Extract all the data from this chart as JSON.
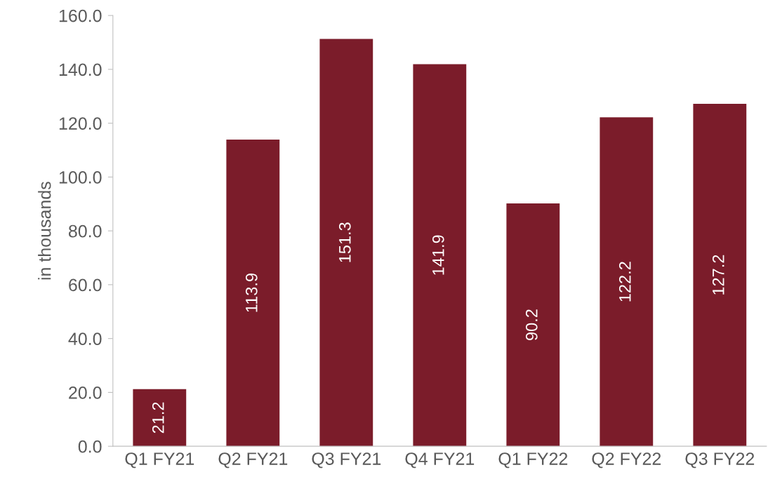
{
  "chart_data": {
    "type": "bar",
    "ylabel": "in thousands",
    "categories": [
      "Q1 FY21",
      "Q2 FY21",
      "Q3 FY21",
      "Q4 FY21",
      "Q1 FY22",
      "Q2 FY22",
      "Q3 FY22"
    ],
    "values": [
      21.2,
      113.9,
      151.3,
      141.9,
      90.2,
      122.2,
      127.2
    ],
    "color": "#7b1c2a",
    "data_labels": true,
    "grid": false,
    "legend": false,
    "ylim": [
      0,
      160
    ],
    "yticks": [
      {
        "value": 0,
        "label": "0.0"
      },
      {
        "value": 20,
        "label": "20.0"
      },
      {
        "value": 40,
        "label": "40.0"
      },
      {
        "value": 60,
        "label": "60.0"
      },
      {
        "value": 80,
        "label": "80.0"
      },
      {
        "value": 100,
        "label": "100.0"
      },
      {
        "value": 120,
        "label": "120.0"
      },
      {
        "value": 140,
        "label": "140.0"
      },
      {
        "value": 160,
        "label": "160.0"
      }
    ]
  }
}
